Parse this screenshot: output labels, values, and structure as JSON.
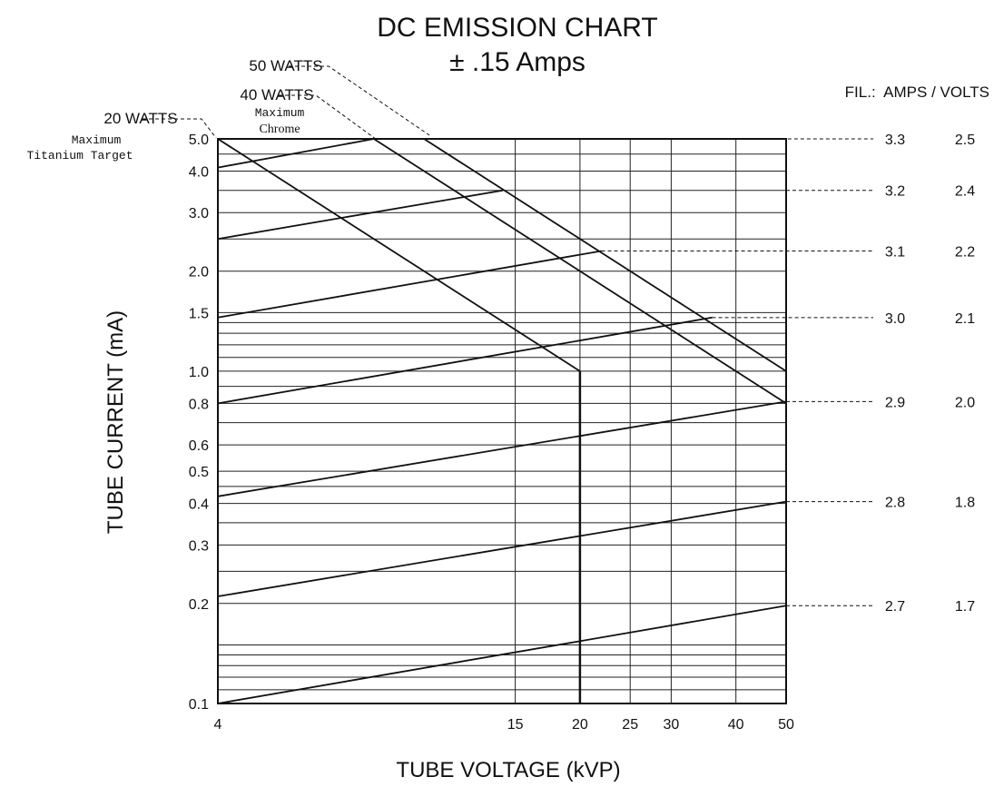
{
  "chart_data": {
    "type": "line",
    "title": "DC EMISSION CHART",
    "subtitle": "± .15 Amps",
    "xlabel": "TUBE VOLTAGE (kVP)",
    "ylabel": "TUBE CURRENT (mA)",
    "x_scale": "log",
    "y_scale": "log",
    "xlim": [
      4,
      50
    ],
    "ylim": [
      0.1,
      5.0
    ],
    "x_ticks": [
      {
        "value": 4,
        "label": "4"
      },
      {
        "value": 15,
        "label": "15"
      },
      {
        "value": 20,
        "label": "20"
      },
      {
        "value": 25,
        "label": "25"
      },
      {
        "value": 30,
        "label": "30"
      },
      {
        "value": 40,
        "label": "40"
      },
      {
        "value": 50,
        "label": "50"
      }
    ],
    "y_ticks": [
      {
        "value": 0.1,
        "label": "0.1"
      },
      {
        "value": 0.2,
        "label": "0.2"
      },
      {
        "value": 0.3,
        "label": "0.3"
      },
      {
        "value": 0.4,
        "label": "0.4"
      },
      {
        "value": 0.5,
        "label": "0.5"
      },
      {
        "value": 0.6,
        "label": "0.6"
      },
      {
        "value": 0.8,
        "label": "0.8"
      },
      {
        "value": 1.0,
        "label": "1.0"
      },
      {
        "value": 1.5,
        "label": "1.5"
      },
      {
        "value": 2.0,
        "label": "2.0"
      },
      {
        "value": 3.0,
        "label": "3.0"
      },
      {
        "value": 4.0,
        "label": "4.0"
      },
      {
        "value": 5.0,
        "label": "5.0"
      }
    ],
    "x_gridlines": [
      15,
      20,
      25,
      30,
      40
    ],
    "y_gridlines": [
      0.11,
      0.12,
      0.13,
      0.14,
      0.15,
      0.2,
      0.25,
      0.3,
      0.35,
      0.4,
      0.45,
      0.5,
      0.6,
      0.7,
      0.8,
      0.9,
      1.0,
      1.1,
      1.2,
      1.3,
      1.4,
      1.5,
      2.0,
      2.5,
      3.0,
      3.5,
      4.0,
      4.5
    ],
    "power_limits": [
      {
        "name": "20 WATTS",
        "note": [
          "Maximum",
          "Titanium Target"
        ],
        "points": [
          [
            4,
            5.0
          ],
          [
            20,
            1.0
          ]
        ],
        "label_value": [
          4,
          5.0
        ]
      },
      {
        "name": "40 WATTS",
        "note": [
          "Maximum",
          "Chrome"
        ],
        "points": [
          [
            8,
            5.0
          ],
          [
            50,
            0.8
          ]
        ],
        "label_value": [
          8,
          5.0
        ]
      },
      {
        "name": "50 WATTS",
        "note": [],
        "points": [
          [
            10,
            5.0
          ],
          [
            50,
            1.0
          ]
        ],
        "label_value": [
          10,
          5.0
        ]
      }
    ],
    "vertical_limit": {
      "x": 20,
      "y_range": [
        0.1,
        1.0
      ]
    },
    "filament_header": "FIL.:  AMPS / VOLTS",
    "filament_lines": [
      {
        "amps": "3.3",
        "volts": "2.5",
        "points": [
          [
            4,
            4.1
          ],
          [
            8,
            5.0
          ]
        ],
        "label_value": [
          8.5,
          5.0
        ]
      },
      {
        "amps": "3.2",
        "volts": "2.4",
        "points": [
          [
            4,
            2.5
          ],
          [
            14.2,
            3.5
          ]
        ],
        "label_value": [
          50,
          3.5
        ]
      },
      {
        "amps": "3.1",
        "volts": "2.2",
        "points": [
          [
            4,
            1.45
          ],
          [
            22,
            2.3
          ]
        ],
        "label_value": [
          22,
          2.3
        ]
      },
      {
        "amps": "3.0",
        "volts": "2.1",
        "points": [
          [
            4,
            0.8
          ],
          [
            36,
            1.45
          ]
        ],
        "label_value": [
          36,
          1.45
        ]
      },
      {
        "amps": "2.9",
        "volts": "2.0",
        "points": [
          [
            4,
            0.42
          ],
          [
            50,
            0.81
          ]
        ],
        "label_value": [
          50,
          0.81
        ]
      },
      {
        "amps": "2.8",
        "volts": "1.8",
        "points": [
          [
            4,
            0.21
          ],
          [
            50,
            0.405
          ]
        ],
        "label_value": [
          50,
          0.405
        ]
      },
      {
        "amps": "2.7",
        "volts": "1.7",
        "points": [
          [
            4,
            0.1
          ],
          [
            50,
            0.197
          ]
        ],
        "label_value": [
          50,
          0.197
        ]
      }
    ]
  }
}
